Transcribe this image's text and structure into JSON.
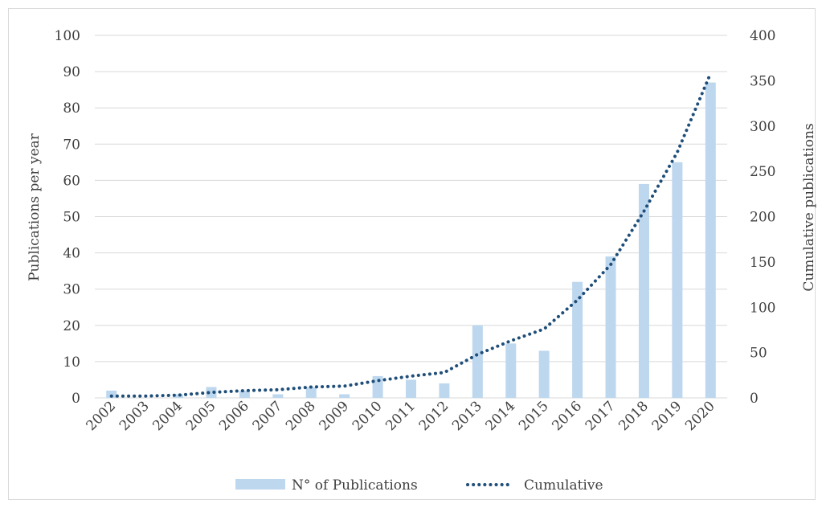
{
  "chart_data": {
    "type": "bar",
    "categories": [
      "2002",
      "2003",
      "2004",
      "2005",
      "2006",
      "2007",
      "2008",
      "2009",
      "2010",
      "2011",
      "2012",
      "2013",
      "2014",
      "2015",
      "2016",
      "2017",
      "2018",
      "2019",
      "2020"
    ],
    "series": [
      {
        "name": "N° of Publications",
        "type": "bar",
        "axis": "left",
        "values": [
          2,
          0,
          1,
          3,
          2,
          1,
          3,
          1,
          6,
          5,
          4,
          20,
          15,
          13,
          32,
          39,
          59,
          65,
          87
        ],
        "color": "#bdd7ee"
      },
      {
        "name": "Cumulative",
        "type": "line",
        "style": "dotted",
        "axis": "right",
        "values": [
          2,
          2,
          3,
          6,
          8,
          9,
          12,
          13,
          19,
          24,
          28,
          48,
          63,
          76,
          108,
          147,
          206,
          271,
          358
        ],
        "color": "#1f4e79"
      }
    ],
    "ylabel": "Publications per year",
    "ylabel_right": "Cumulative publications",
    "ylim": [
      0,
      100
    ],
    "ylim_right": [
      0,
      400
    ],
    "yticks": [
      "0",
      "10",
      "20",
      "30",
      "40",
      "50",
      "60",
      "70",
      "80",
      "90",
      "100"
    ],
    "yticks_right": [
      "0",
      "50",
      "100",
      "150",
      "200",
      "250",
      "300",
      "350",
      "400"
    ],
    "grid": true,
    "legend": "bottom-center"
  }
}
